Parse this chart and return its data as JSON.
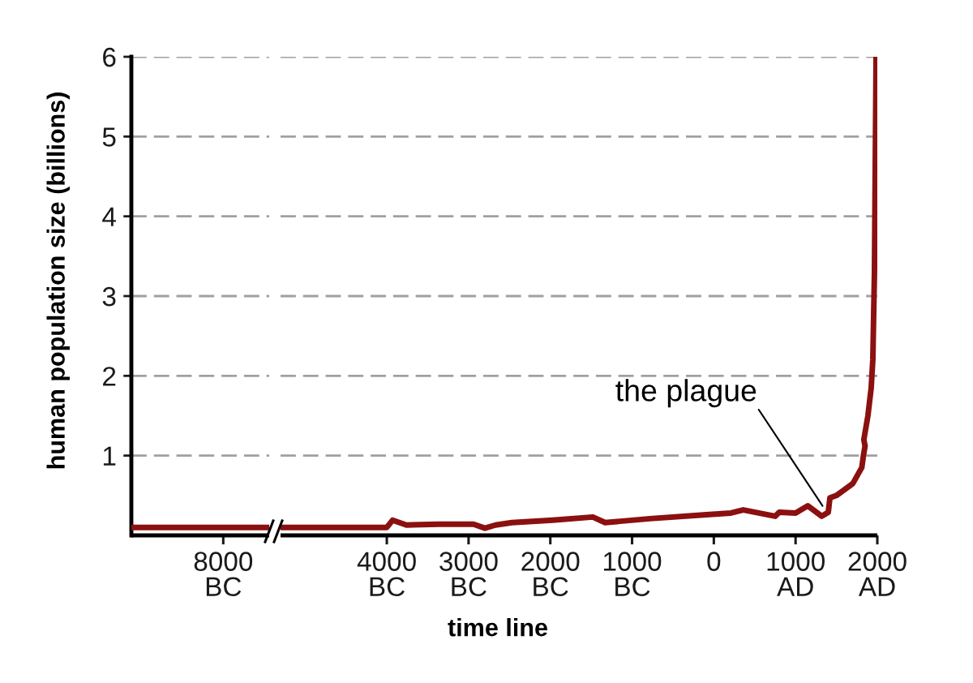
{
  "chart_data": [
    {
      "type": "line",
      "ylabel": "human population size (billions)",
      "categories": [
        null,
        null,
        "8000\nBC",
        null
      ],
      "ylim": [
        0,
        6
      ],
      "yticks": [
        1,
        2,
        3,
        4,
        5,
        6
      ],
      "grid": "y",
      "series": [
        {
          "color": "#8b1010",
          "values": [
            0.1,
            0.1,
            0.1,
            0.1
          ]
        }
      ]
    },
    {
      "type": "line",
      "xlabel": "time line",
      "xlim": [
        -5300,
        2000
      ],
      "ylim": [
        0,
        6
      ],
      "xticks": [
        {
          "value": -4000,
          "label": "4000\nBC"
        },
        {
          "value": -3000,
          "label": "3000\nBC"
        },
        {
          "value": -2000,
          "label": "2000\nBC"
        },
        {
          "value": -1000,
          "label": "1000\nBC"
        },
        0,
        {
          "value": 1000,
          "label": "1000\nAD"
        },
        {
          "value": 2000,
          "label": "2000\nAD"
        }
      ],
      "yticks": [
        1,
        2,
        3,
        4,
        5,
        6
      ],
      "grid": "y",
      "tick_labels": "x",
      "annotations": [
        {
          "text": "the plague",
          "x": 1330,
          "y": 0.37
        }
      ],
      "series": [
        {
          "color": "#8b1010",
          "x": [
            -5300,
            -4000,
            -3930,
            -3760,
            -3360,
            -2940,
            -2800,
            -2670,
            -2470,
            -1970,
            -1480,
            -1330,
            -780,
            -90,
            210,
            360,
            750,
            800,
            1000,
            1150,
            1320,
            1400,
            1420,
            1500,
            1700,
            1810,
            1830,
            1850,
            1835,
            1885,
            1925,
            1945,
            1965,
            1985
          ],
          "values": [
            0.1,
            0.1,
            0.19,
            0.13,
            0.14,
            0.14,
            0.09,
            0.13,
            0.16,
            0.19,
            0.23,
            0.16,
            0.21,
            0.26,
            0.28,
            0.32,
            0.24,
            0.29,
            0.28,
            0.37,
            0.24,
            0.29,
            0.47,
            0.5,
            0.65,
            0.85,
            1.0,
            1.12,
            1.2,
            1.5,
            1.85,
            2.2,
            3.3,
            6.0
          ]
        }
      ]
    }
  ]
}
